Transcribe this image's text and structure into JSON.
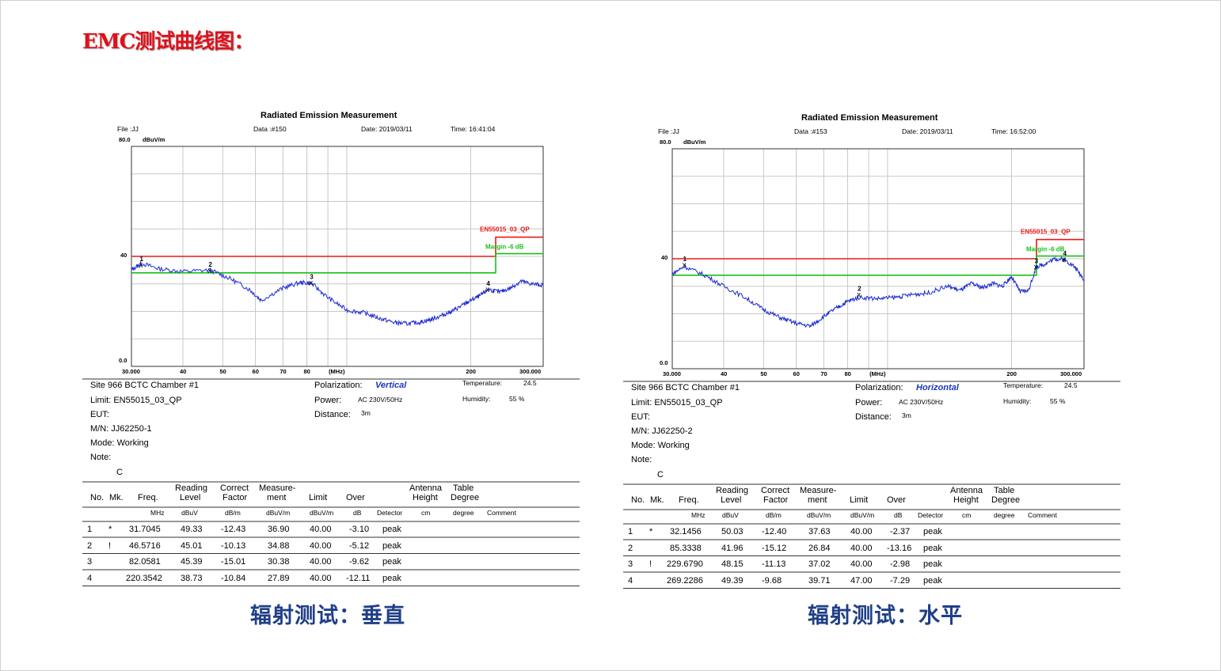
{
  "page_title": "EMC测试曲线图：",
  "panels": [
    {
      "caption": "辐射测试：垂直",
      "title": "Radiated Emission Measurement",
      "file": "File :JJ",
      "data_no": "Data :#150",
      "date": "Date: 2019/03/11",
      "time": "Time: 16:41:04",
      "site": "Site  966 BCTC Chamber #1",
      "limit_label": "Limit:  EN55015_03_QP",
      "eut": "EUT:",
      "mn": "M/N:   JJ62250-1",
      "mode": "Mode:  Working",
      "note": "Note:",
      "note_value": "C",
      "polarization_label": "Polarization:",
      "polarization": "Vertical",
      "power_label": "Power:",
      "power": "AC 230V/50Hz",
      "distance_label": "Distance:",
      "distance": "3m",
      "temperature_label": "Temperature:",
      "temperature": "24.5",
      "humidity_label": "Humidity:",
      "humidity": "55 %",
      "rows": [
        {
          "no": "1",
          "mk": "*",
          "freq": "31.7045",
          "reading": "49.33",
          "correct": "-12.43",
          "measure": "36.90",
          "limit": "40.00",
          "over": "-3.10",
          "detector": "peak"
        },
        {
          "no": "2",
          "mk": "!",
          "freq": "46.5716",
          "reading": "45.01",
          "correct": "-10.13",
          "measure": "34.88",
          "limit": "40.00",
          "over": "-5.12",
          "detector": "peak"
        },
        {
          "no": "3",
          "mk": "",
          "freq": "82.0581",
          "reading": "45.39",
          "correct": "-15.01",
          "measure": "30.38",
          "limit": "40.00",
          "over": "-9.62",
          "detector": "peak"
        },
        {
          "no": "4",
          "mk": "",
          "freq": "220.3542",
          "reading": "38.73",
          "correct": "-10.84",
          "measure": "27.89",
          "limit": "40.00",
          "over": "-12.11",
          "detector": "peak"
        }
      ]
    },
    {
      "caption": "辐射测试：水平",
      "title": "Radiated Emission Measurement",
      "file": "File :JJ",
      "data_no": "Data :#153",
      "date": "Date: 2019/03/11",
      "time": "Time: 16:52:00",
      "site": "Site  966 BCTC Chamber #1",
      "limit_label": "Limit:  EN55015_03_QP",
      "eut": "EUT:",
      "mn": "M/N:   JJ62250-2",
      "mode": "Mode:  Working",
      "note": "Note:",
      "note_value": "C",
      "polarization_label": "Polarization:",
      "polarization": "Horizontal",
      "power_label": "Power:",
      "power": "AC 230V/50Hz",
      "distance_label": "Distance:",
      "distance": "3m",
      "temperature_label": "Temperature:",
      "temperature": "24.5",
      "humidity_label": "Humidity:",
      "humidity": "55 %",
      "rows": [
        {
          "no": "1",
          "mk": "*",
          "freq": "32.1456",
          "reading": "50.03",
          "correct": "-12.40",
          "measure": "37.63",
          "limit": "40.00",
          "over": "-2.37",
          "detector": "peak"
        },
        {
          "no": "2",
          "mk": "",
          "freq": "85.3338",
          "reading": "41.96",
          "correct": "-15.12",
          "measure": "26.84",
          "limit": "40.00",
          "over": "-13.16",
          "detector": "peak"
        },
        {
          "no": "3",
          "mk": "!",
          "freq": "229.6790",
          "reading": "48.15",
          "correct": "-11.13",
          "measure": "37.02",
          "limit": "40.00",
          "over": "-2.98",
          "detector": "peak"
        },
        {
          "no": "4",
          "mk": "",
          "freq": "269.2286",
          "reading": "49.39",
          "correct": "-9.68",
          "measure": "39.71",
          "limit": "47.00",
          "over": "-7.29",
          "detector": "peak"
        }
      ]
    }
  ],
  "table_headers": {
    "no": "No.",
    "mk": "Mk.",
    "freq": "Freq.",
    "reading_1": "Reading",
    "reading_2": "Level",
    "correct_1": "Correct",
    "correct_2": "Factor",
    "measure_1": "Measure-",
    "measure_2": "ment",
    "limit": "Limit",
    "over": "Over",
    "antenna_1": "Antenna",
    "antenna_2": "Height",
    "table_1": "Table",
    "table_2": "Degree",
    "u_freq": "MHz",
    "u_reading": "dBuV",
    "u_correct": "dB/m",
    "u_measure": "dBuV/m",
    "u_limit": "dBuV/m",
    "u_over": "dB",
    "u_detector": "Detector",
    "u_antenna": "cm",
    "u_table": "degree",
    "u_comment": "Comment"
  },
  "chart_data": [
    {
      "type": "line",
      "title": "Radiated Emission Measurement",
      "ylabel": "dBuV/m",
      "xlabel": "(MHz)",
      "x_scale": "log",
      "xlim": [
        30,
        300
      ],
      "ylim": [
        0,
        80
      ],
      "x_ticks": [
        "30.000",
        "40",
        "50",
        "60",
        "70",
        "80",
        "(MHz)",
        "200",
        "300.000"
      ],
      "y_ticks": [
        "80.0",
        "40",
        "0.0"
      ],
      "y_unit_label": "dBuV/m",
      "grid": true,
      "colors": {
        "trace": "#1b2bd0",
        "limit": "#e81a1a",
        "margin": "#19c019"
      },
      "limit_line": {
        "name": "EN55015_03_QP",
        "points": [
          [
            30,
            40
          ],
          [
            230,
            40
          ],
          [
            230,
            47
          ],
          [
            300,
            47
          ]
        ]
      },
      "margin_line": {
        "name": "Margin -6 dB",
        "points": [
          [
            30,
            34
          ],
          [
            230,
            34
          ],
          [
            230,
            41
          ],
          [
            300,
            41
          ]
        ]
      },
      "series": [
        {
          "x": [
            30,
            31.7,
            35,
            40,
            46.6,
            52,
            58,
            62,
            70,
            77,
            82.1,
            90,
            100,
            110,
            120,
            130,
            140,
            150,
            160,
            170,
            180,
            190,
            200,
            210,
            220.4,
            235,
            250,
            265,
            280,
            300
          ],
          "y": [
            35,
            37.5,
            35.5,
            34.5,
            35,
            32,
            28,
            24,
            28.5,
            30.5,
            30.2,
            25,
            20.5,
            19.5,
            17.5,
            16,
            15.5,
            16,
            17,
            18.5,
            20,
            22,
            24,
            25.5,
            28,
            27,
            28.5,
            31,
            30,
            29.5
          ]
        }
      ],
      "markers": [
        {
          "label": "1",
          "x": 31.7045,
          "y": 36.9
        },
        {
          "label": "2",
          "x": 46.5716,
          "y": 34.88
        },
        {
          "label": "3",
          "x": 82.0581,
          "y": 30.38
        },
        {
          "label": "4",
          "x": 220.3542,
          "y": 27.89
        }
      ]
    },
    {
      "type": "line",
      "title": "Radiated Emission Measurement",
      "ylabel": "dBuV/m",
      "xlabel": "(MHz)",
      "x_scale": "log",
      "xlim": [
        30,
        300
      ],
      "ylim": [
        0,
        80
      ],
      "x_ticks": [
        "30.000",
        "40",
        "50",
        "60",
        "70",
        "80",
        "(MHz)",
        "200",
        "300.000"
      ],
      "y_ticks": [
        "80.0",
        "40",
        "0.0"
      ],
      "y_unit_label": "dBuV/m",
      "grid": true,
      "colors": {
        "trace": "#1b2bd0",
        "limit": "#e81a1a",
        "margin": "#19c019"
      },
      "limit_line": {
        "name": "EN55015_03_QP",
        "points": [
          [
            30,
            40
          ],
          [
            230,
            40
          ],
          [
            230,
            47
          ],
          [
            300,
            47
          ]
        ]
      },
      "margin_line": {
        "name": "Margin -6 dB",
        "points": [
          [
            30,
            34
          ],
          [
            230,
            34
          ],
          [
            230,
            41
          ],
          [
            300,
            41
          ]
        ]
      },
      "series": [
        {
          "x": [
            30,
            32.1,
            36,
            40,
            45,
            50,
            55,
            60,
            65,
            70,
            75,
            80,
            85.3,
            95,
            105,
            115,
            125,
            140,
            150,
            160,
            170,
            180,
            190,
            200,
            210,
            220,
            229.7,
            240,
            255,
            269.2,
            285,
            300
          ],
          "y": [
            34.5,
            37.2,
            34,
            30,
            26,
            21.5,
            18.5,
            16.5,
            15.5,
            19,
            22,
            24.5,
            26,
            25.5,
            26,
            27,
            27.5,
            30,
            28.5,
            31,
            29.5,
            31,
            30,
            33.5,
            28,
            28.5,
            37,
            38,
            40,
            39.7,
            37,
            32.5
          ]
        }
      ],
      "markers": [
        {
          "label": "1",
          "x": 32.1456,
          "y": 37.63
        },
        {
          "label": "2",
          "x": 85.3338,
          "y": 26.84
        },
        {
          "label": "3",
          "x": 229.679,
          "y": 37.02
        },
        {
          "label": "4",
          "x": 269.2286,
          "y": 39.71
        }
      ]
    }
  ]
}
